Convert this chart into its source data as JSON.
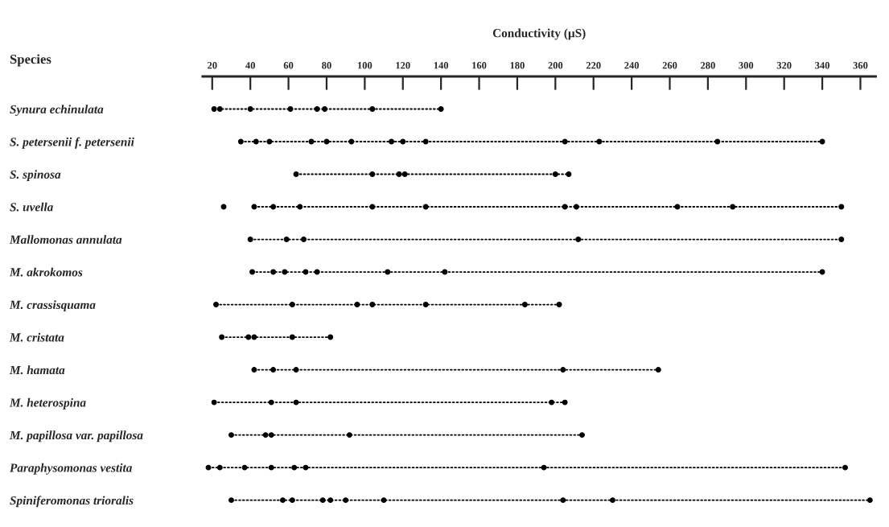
{
  "chart_data": {
    "type": "line",
    "orientation": "horizontal",
    "xlabel": "Conductivity (µS)",
    "ylabel": "Species",
    "categories": [
      "Synura echinulata",
      "S. petersenii f. petersenii",
      "S. spinosa",
      "S. uvella",
      "Mallomonas annulata",
      "M. akrokomos",
      "M. crassisquama",
      "M. cristata",
      "M. hamata",
      "M. heterospina",
      "M. papillosa var. papillosa",
      "Paraphysomonas vestita",
      "Spiniferomonas trioralis"
    ],
    "series": [
      {
        "color": "#000000",
        "x": [
          "Synura echinulata",
          "Synura echinulata",
          "Synura echinulata",
          "Synura echinulata",
          "Synura echinulata",
          "Synura echinulata",
          "Synura echinulata",
          "Synura echinulata"
        ],
        "values": [
          21,
          24,
          40,
          61,
          75,
          79,
          104,
          140
        ]
      },
      {
        "color": "#000000",
        "x": [
          "S. petersenii f. petersenii",
          "S. petersenii f. petersenii",
          "S. petersenii f. petersenii",
          "S. petersenii f. petersenii",
          "S. petersenii f. petersenii",
          "S. petersenii f. petersenii",
          "S. petersenii f. petersenii",
          "S. petersenii f. petersenii",
          "S. petersenii f. petersenii",
          "S. petersenii f. petersenii",
          "S. petersenii f. petersenii",
          "S. petersenii f. petersenii",
          "S. petersenii f. petersenii"
        ],
        "values": [
          35,
          43,
          50,
          72,
          80,
          93,
          114,
          120,
          132,
          205,
          223,
          285,
          340
        ]
      },
      {
        "color": "#000000",
        "x": [
          "S. spinosa",
          "S. spinosa",
          "S. spinosa",
          "S. spinosa",
          "S. spinosa",
          "S. spinosa"
        ],
        "values": [
          64,
          104,
          118,
          121,
          200,
          207
        ]
      },
      {
        "color": "#000000",
        "x": [
          "S. uvella",
          "S. uvella",
          "S. uvella",
          "S. uvella",
          "S. uvella",
          "S. uvella",
          "S. uvella",
          "S. uvella",
          "S. uvella",
          "S. uvella",
          "S. uvella",
          "S. uvella"
        ],
        "values": [
          26,
          null,
          42,
          52,
          66,
          104,
          132,
          205,
          211,
          264,
          293,
          350
        ]
      },
      {
        "color": "#000000",
        "x": [
          "Mallomonas annulata",
          "Mallomonas annulata",
          "Mallomonas annulata",
          "Mallomonas annulata",
          "Mallomonas annulata"
        ],
        "values": [
          40,
          59,
          68,
          212,
          350
        ]
      },
      {
        "color": "#000000",
        "x": [
          "M. akrokomos",
          "M. akrokomos",
          "M. akrokomos",
          "M. akrokomos",
          "M. akrokomos",
          "M. akrokomos",
          "M. akrokomos",
          "M. akrokomos"
        ],
        "values": [
          41,
          52,
          58,
          69,
          75,
          112,
          142,
          340
        ]
      },
      {
        "color": "#000000",
        "x": [
          "M. crassisquama",
          "M. crassisquama",
          "M. crassisquama",
          "M. crassisquama",
          "M. crassisquama",
          "M. crassisquama",
          "M. crassisquama"
        ],
        "values": [
          22,
          62,
          96,
          104,
          132,
          184,
          202
        ]
      },
      {
        "color": "#000000",
        "x": [
          "M. cristata",
          "M. cristata",
          "M. cristata",
          "M. cristata",
          "M. cristata"
        ],
        "values": [
          25,
          39,
          42,
          62,
          82
        ]
      },
      {
        "color": "#000000",
        "x": [
          "M. hamata",
          "M. hamata",
          "M. hamata",
          "M. hamata",
          "M. hamata"
        ],
        "values": [
          42,
          52,
          64,
          204,
          254
        ]
      },
      {
        "color": "#000000",
        "x": [
          "M. heterospina",
          "M. heterospina",
          "M. heterospina",
          "M. heterospina",
          "M. heterospina"
        ],
        "values": [
          21,
          51,
          64,
          198,
          205
        ]
      },
      {
        "color": "#000000",
        "x": [
          "M. papillosa var. papillosa",
          "M. papillosa var. papillosa",
          "M. papillosa var. papillosa",
          "M. papillosa var. papillosa",
          "M. papillosa var. papillosa"
        ],
        "values": [
          30,
          48,
          51,
          92,
          214
        ]
      },
      {
        "color": "#000000",
        "x": [
          "Paraphysomonas vestita",
          "Paraphysomonas vestita",
          "Paraphysomonas vestita",
          "Paraphysomonas vestita",
          "Paraphysomonas vestita",
          "Paraphysomonas vestita",
          "Paraphysomonas vestita",
          "Paraphysomonas vestita"
        ],
        "values": [
          18,
          24,
          37,
          51,
          63,
          69,
          194,
          352
        ]
      },
      {
        "color": "#000000",
        "x": [
          "Spiniferomonas trioralis",
          "Spiniferomonas trioralis",
          "Spiniferomonas trioralis",
          "Spiniferomonas trioralis",
          "Spiniferomonas trioralis",
          "Spiniferomonas trioralis",
          "Spiniferomonas trioralis",
          "Spiniferomonas trioralis",
          "Spiniferomonas trioralis",
          "Spiniferomonas trioralis"
        ],
        "values": [
          30,
          57,
          62,
          78,
          82,
          90,
          110,
          204,
          230,
          365
        ]
      }
    ],
    "xlim": [
      15,
      368
    ],
    "xticks": [
      20,
      40,
      60,
      80,
      100,
      120,
      140,
      160,
      180,
      200,
      220,
      240,
      260,
      280,
      300,
      320,
      340,
      360
    ],
    "marker": "circle",
    "line_style": "dotted",
    "grid": false,
    "legend": false
  }
}
